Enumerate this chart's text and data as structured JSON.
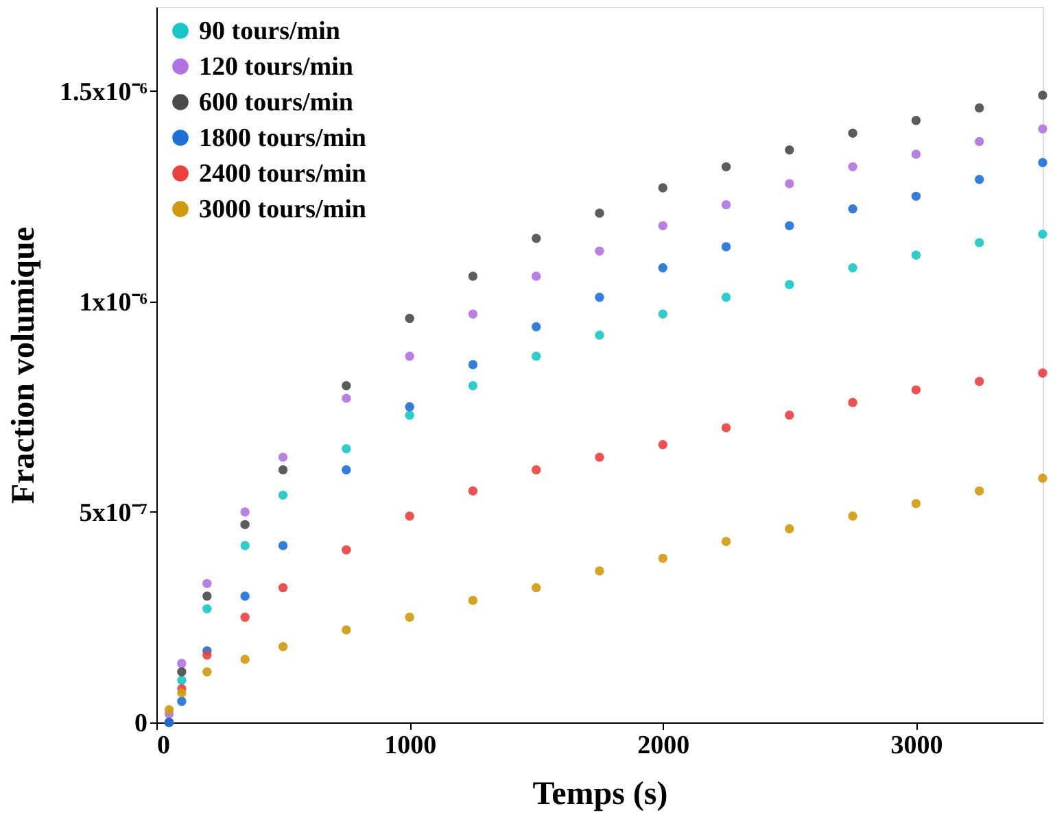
{
  "chart_data": {
    "type": "scatter",
    "xlabel": "Temps (s)",
    "ylabel": "Fraction volumique",
    "x": [
      50,
      100,
      200,
      350,
      500,
      750,
      1000,
      1250,
      1500,
      1750,
      2000,
      2250,
      2500,
      2750,
      3000,
      3250,
      3500
    ],
    "xlim": [
      0,
      3500
    ],
    "xticks": [
      0,
      1000,
      2000,
      3000
    ],
    "ylim": [
      0,
      1.7e-06
    ],
    "yticks": [
      0,
      {
        "value": 5e-07,
        "label": "5x10⁻⁷"
      },
      {
        "value": 1e-06,
        "label": "1x10⁻⁶"
      },
      {
        "value": 1.5e-06,
        "label": "1.5x10⁻⁶"
      }
    ],
    "grid": false,
    "legend": "top left",
    "marker": "circle",
    "series": [
      {
        "name": "90 tours/min",
        "color": "#19c6c6",
        "values": [
          0,
          1e-07,
          2.7e-07,
          4.2e-07,
          5.4e-07,
          6.5e-07,
          7.3e-07,
          8e-07,
          8.7e-07,
          9.2e-07,
          9.7e-07,
          1.01e-06,
          1.04e-06,
          1.08e-06,
          1.11e-06,
          1.14e-06,
          1.16e-06
        ]
      },
      {
        "name": "120 tours/min",
        "color": "#b072e0",
        "values": [
          2e-08,
          1.4e-07,
          3.3e-07,
          5e-07,
          6.3e-07,
          7.7e-07,
          8.7e-07,
          9.7e-07,
          1.06e-06,
          1.12e-06,
          1.18e-06,
          1.23e-06,
          1.28e-06,
          1.32e-06,
          1.35e-06,
          1.38e-06,
          1.41e-06
        ]
      },
      {
        "name": "600 tours/min",
        "color": "#4a4a4a",
        "values": [
          0,
          1.2e-07,
          3e-07,
          4.7e-07,
          6e-07,
          8e-07,
          9.6e-07,
          1.06e-06,
          1.15e-06,
          1.21e-06,
          1.27e-06,
          1.32e-06,
          1.36e-06,
          1.4e-06,
          1.43e-06,
          1.46e-06,
          1.49e-06
        ]
      },
      {
        "name": "1800 tours/min",
        "color": "#1f6fd6",
        "values": [
          0,
          5e-08,
          1.7e-07,
          3e-07,
          4.2e-07,
          6e-07,
          7.5e-07,
          8.5e-07,
          9.4e-07,
          1.01e-06,
          1.08e-06,
          1.13e-06,
          1.18e-06,
          1.22e-06,
          1.25e-06,
          1.29e-06,
          1.33e-06
        ]
      },
      {
        "name": "2400 tours/min",
        "color": "#e8403f",
        "values": [
          null,
          8e-08,
          1.6e-07,
          2.5e-07,
          3.2e-07,
          4.1e-07,
          4.9e-07,
          5.5e-07,
          6e-07,
          6.3e-07,
          6.6e-07,
          7e-07,
          7.3e-07,
          7.6e-07,
          7.9e-07,
          8.1e-07,
          8.3e-07
        ]
      },
      {
        "name": "3000 tours/min",
        "color": "#d09a10",
        "values": [
          3e-08,
          7e-08,
          1.2e-07,
          1.5e-07,
          1.8e-07,
          2.2e-07,
          2.5e-07,
          2.9e-07,
          3.2e-07,
          3.6e-07,
          3.9e-07,
          4.3e-07,
          4.6e-07,
          4.9e-07,
          5.2e-07,
          5.5e-07,
          5.8e-07
        ]
      }
    ]
  }
}
